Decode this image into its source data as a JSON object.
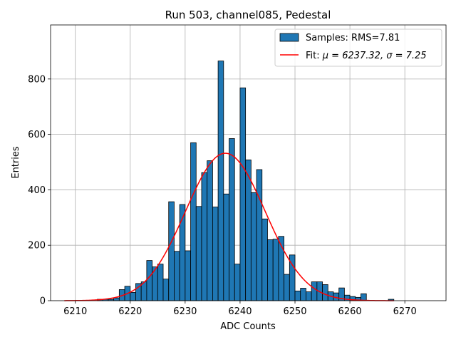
{
  "chart_data": {
    "type": "bar",
    "title": "Run 503, channel085, Pedestal",
    "xlabel": "ADC Counts",
    "ylabel": "Entries",
    "xlim": [
      6205.5,
      6277.5
    ],
    "ylim": [
      0,
      995
    ],
    "xticks": [
      6210,
      6220,
      6230,
      6240,
      6250,
      6260,
      6270
    ],
    "yticks": [
      0,
      200,
      400,
      600,
      800
    ],
    "grid": true,
    "legend_position": "top-right",
    "colors": {
      "bar_fill": "#1f77b4",
      "bar_edge": "#000000",
      "fit_line": "#ff0000",
      "grid": "#b0b0b0"
    },
    "histogram": {
      "name": "Samples: RMS=7.81",
      "bin_width": 1,
      "bin_starts": [
        6208,
        6209,
        6210,
        6211,
        6212,
        6213,
        6214,
        6215,
        6216,
        6217,
        6218,
        6219,
        6220,
        6221,
        6222,
        6223,
        6224,
        6225,
        6226,
        6227,
        6228,
        6229,
        6230,
        6231,
        6232,
        6233,
        6234,
        6235,
        6236,
        6237,
        6238,
        6239,
        6240,
        6241,
        6242,
        6243,
        6244,
        6245,
        6246,
        6247,
        6248,
        6249,
        6250,
        6251,
        6252,
        6253,
        6254,
        6255,
        6256,
        6257,
        6258,
        6259,
        6260,
        6261,
        6262,
        6263,
        6264,
        6265,
        6266,
        6267
      ],
      "counts": [
        0,
        0,
        0,
        0,
        0,
        0,
        5,
        5,
        5,
        10,
        40,
        52,
        30,
        62,
        68,
        145,
        122,
        132,
        78,
        357,
        178,
        347,
        180,
        570,
        340,
        462,
        505,
        338,
        865,
        385,
        585,
        132,
        768,
        508,
        390,
        473,
        295,
        220,
        222,
        232,
        95,
        165,
        35,
        45,
        32,
        68,
        68,
        58,
        32,
        28,
        46,
        20,
        15,
        12,
        25,
        0,
        0,
        0,
        0,
        5
      ]
    },
    "fit": {
      "name_prefix": "Fit: ",
      "name_math": "μ = 6237.32, σ = 7.25",
      "mu": 6237.32,
      "sigma": 7.25,
      "amplitude": 532,
      "x_range": [
        6208,
        6268
      ]
    }
  }
}
